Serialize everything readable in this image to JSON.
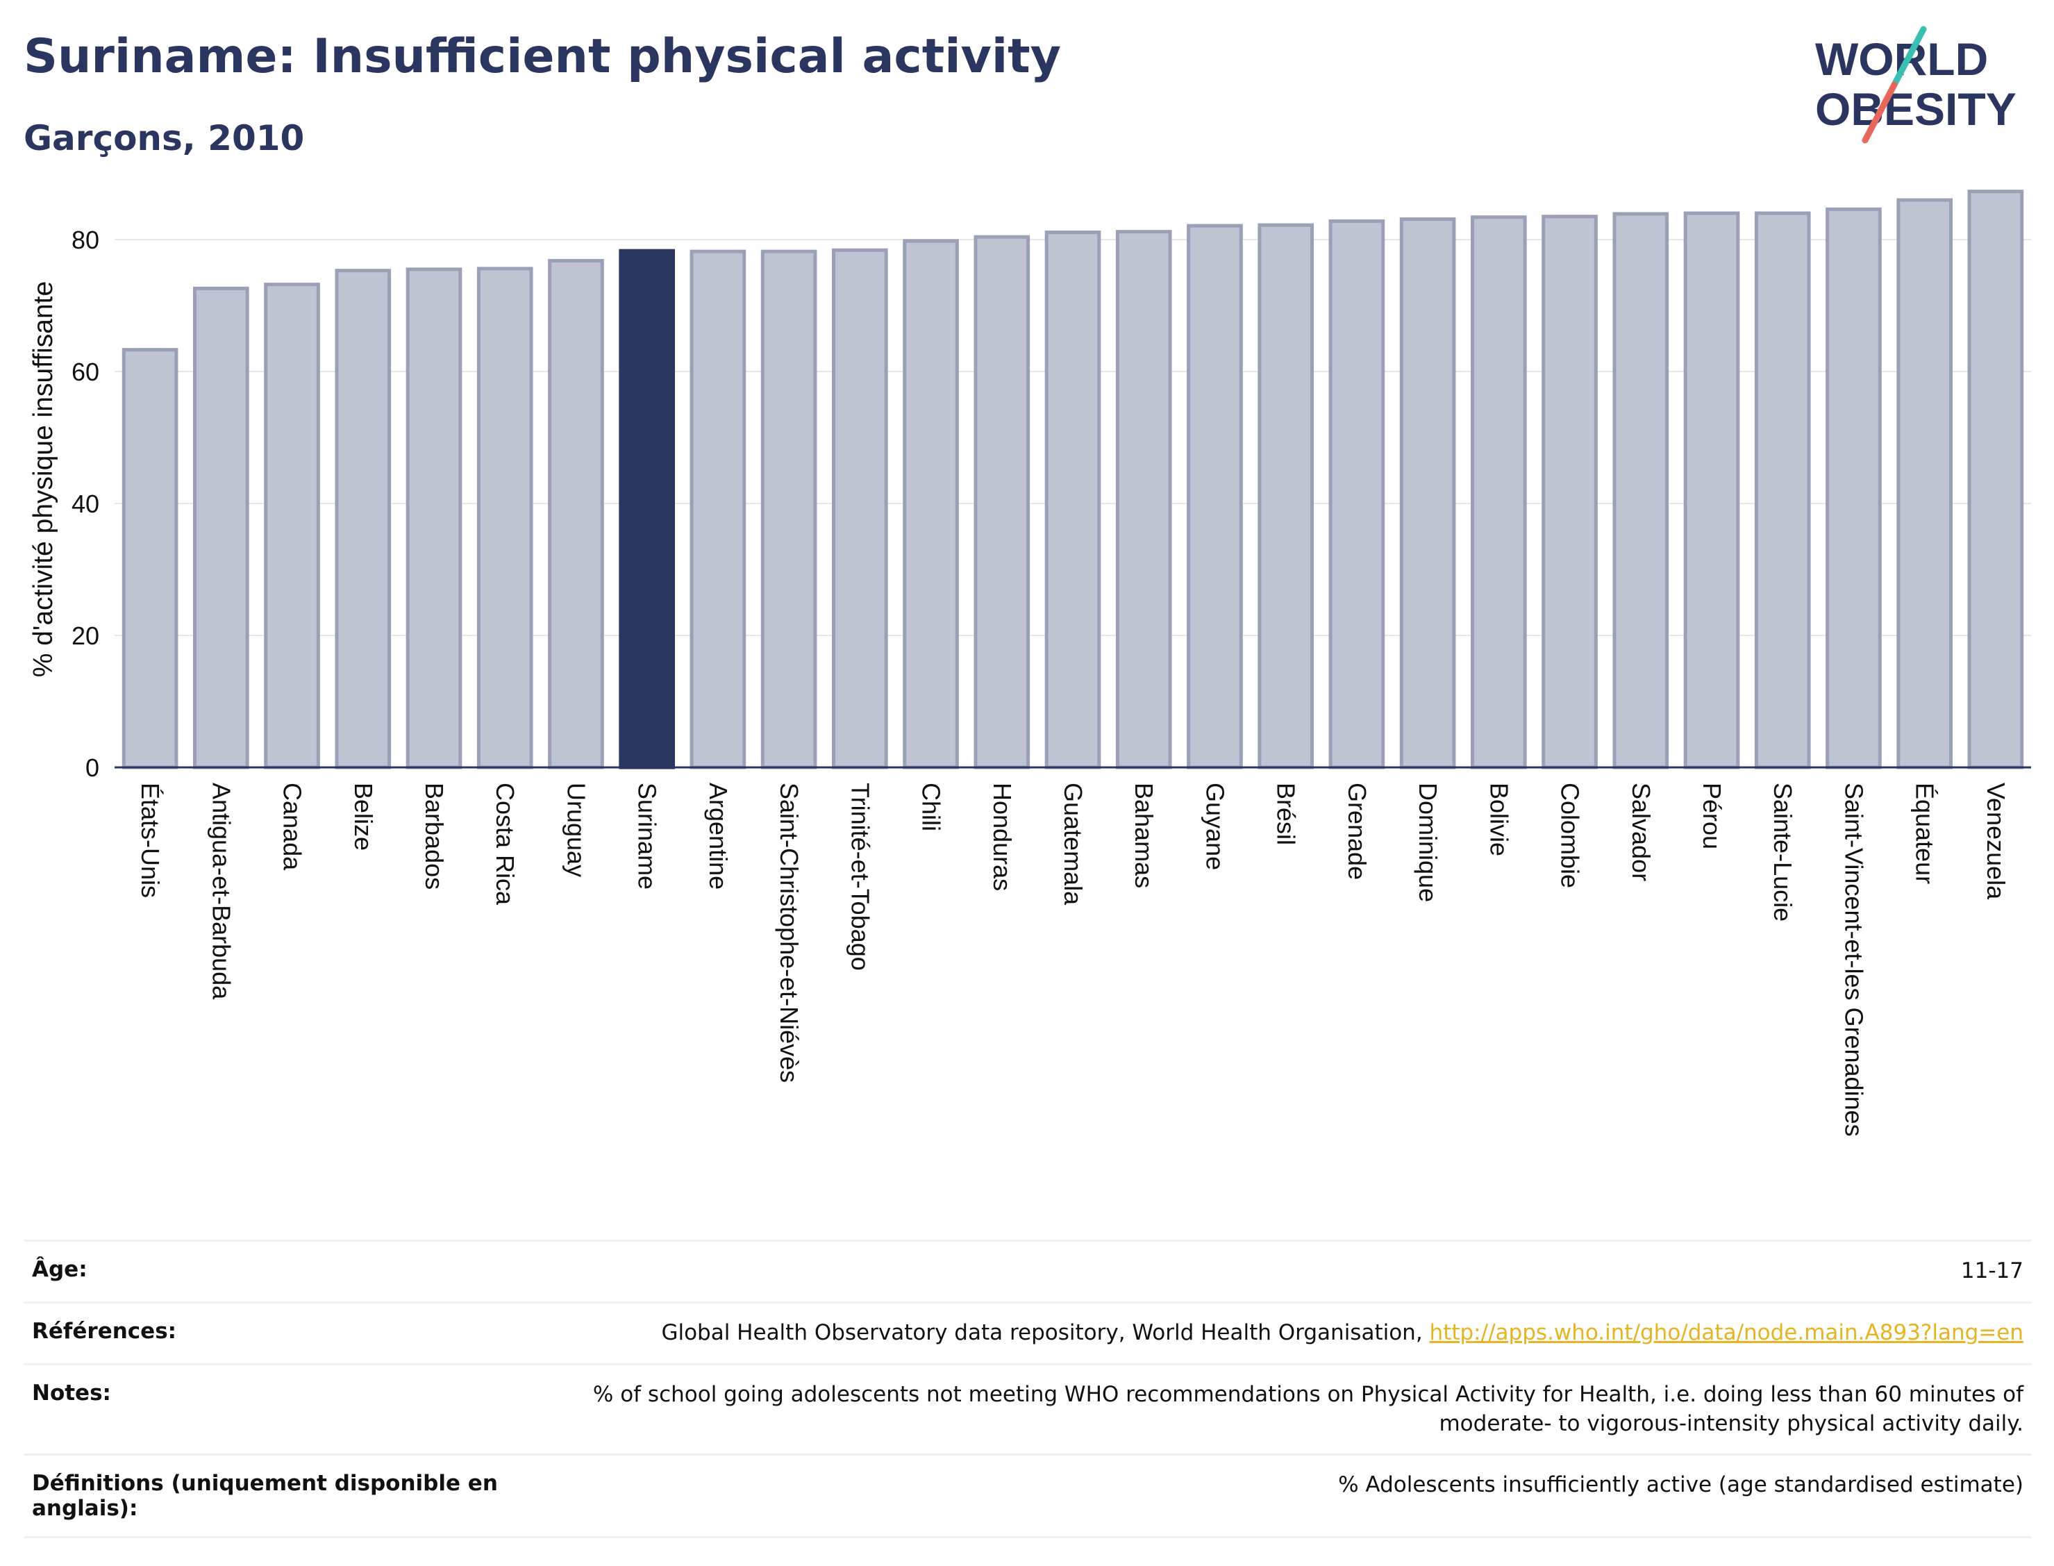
{
  "header": {
    "title": "Suriname: Insufficient physical activity",
    "subtitle": "Garçons, 2010"
  },
  "logo": {
    "line1": "WORLD",
    "line2": "OBESITY"
  },
  "colors": {
    "bar": "#bfc3d2",
    "bar_border": "#9aa0b8",
    "highlight": "#2a3560",
    "grid": "#e6e6e6",
    "link": "#e6b422"
  },
  "chart_data": {
    "type": "bar",
    "title": "Suriname: Insufficient physical activity",
    "subtitle": "Garçons, 2010",
    "xlabel": "",
    "ylabel": "% d'activité physique insuffisante",
    "ylim": [
      0,
      90
    ],
    "yticks": [
      0,
      20,
      40,
      60,
      80
    ],
    "grid": true,
    "highlight": "Suriname",
    "categories": [
      "États-Unis",
      "Antigua-et-Barbuda",
      "Canada",
      "Belize",
      "Barbados",
      "Costa Rica",
      "Uruguay",
      "Suriname",
      "Argentine",
      "Saint-Christophe-et-Niévès",
      "Trinité-et-Tobago",
      "Chili",
      "Honduras",
      "Guatemala",
      "Bahamas",
      "Guyane",
      "Brésil",
      "Grenade",
      "Dominique",
      "Bolivie",
      "Colombie",
      "Salvador",
      "Pérou",
      "Sainte-Lucie",
      "Saint-Vincent-et-les Grenadines",
      "Équateur",
      "Venezuela"
    ],
    "values": [
      63.3,
      72.6,
      73.2,
      75.3,
      75.5,
      75.6,
      76.8,
      78.3,
      78.2,
      78.2,
      78.4,
      79.8,
      80.4,
      81.1,
      81.2,
      82.1,
      82.2,
      82.8,
      83.1,
      83.4,
      83.5,
      83.9,
      84.0,
      84.0,
      84.6,
      86.0,
      87.3
    ]
  },
  "info": {
    "age": {
      "label": "Âge:",
      "value": "11-17"
    },
    "references": {
      "label": "Références:",
      "text": "Global Health Observatory data repository, World Health Organisation, ",
      "link": "http://apps.who.int/gho/data/node.main.A893?lang=en"
    },
    "notes": {
      "label": "Notes:",
      "line1": "% of school going adolescents not meeting WHO recommendations on Physical Activity for Health, i.e. doing less than 60 minutes of",
      "line2": "moderate- to vigorous-intensity physical activity daily."
    },
    "definitions": {
      "label_line1": "Définitions (uniquement disponible en",
      "label_line2": "anglais):",
      "value": "% Adolescents insufficiently active (age standardised estimate)"
    }
  }
}
